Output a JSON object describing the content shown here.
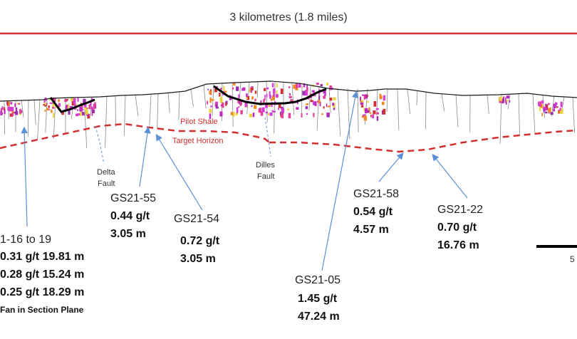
{
  "scale_bar_top": {
    "label": "3 kilometres (1.8 miles)"
  },
  "horizons": {
    "pilot_shale": "Pilot Shale",
    "target_horizon": "Target Horizon"
  },
  "faults": {
    "delta": {
      "line1": "Delta",
      "line2": "Fault"
    },
    "dilles": {
      "line1": "Dilles",
      "line2": "Fault"
    }
  },
  "holes": {
    "gs21_16_19": {
      "name": "1-16 to 19",
      "intercepts": [
        "0.31 g/t 19.81 m",
        "0.28 g/t 15.24 m",
        "0.25 g/t 18.29 m"
      ],
      "note": "Fan in Section Plane"
    },
    "gs21_55": {
      "name": "GS21-55",
      "grade": "0.44 g/t",
      "width": "3.05 m"
    },
    "gs21_54": {
      "name": "GS21-54",
      "grade": "0.72 g/t",
      "width": "3.05 m"
    },
    "gs21_05": {
      "name": "GS21-05",
      "grade": "1.45 g/t",
      "width": "47.24 m"
    },
    "gs21_58": {
      "name": "GS21-58",
      "grade": "0.54 g/t",
      "width": "4.57 m"
    },
    "gs21_22": {
      "name": "GS21-22",
      "grade": "0.70 g/t",
      "width": "16.76 m"
    }
  },
  "scale_bar_bottom": {
    "label": "5"
  },
  "colors": {
    "red_line": "#d32f2f",
    "arrow_blue": "#5b8fd6",
    "magenta": "#d63bd6",
    "surface": "#1a1a1a"
  }
}
